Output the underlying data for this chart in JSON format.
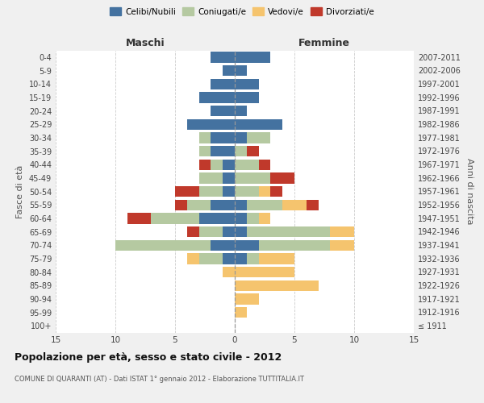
{
  "age_groups": [
    "100+",
    "95-99",
    "90-94",
    "85-89",
    "80-84",
    "75-79",
    "70-74",
    "65-69",
    "60-64",
    "55-59",
    "50-54",
    "45-49",
    "40-44",
    "35-39",
    "30-34",
    "25-29",
    "20-24",
    "15-19",
    "10-14",
    "5-9",
    "0-4"
  ],
  "birth_years": [
    "≤ 1911",
    "1912-1916",
    "1917-1921",
    "1922-1926",
    "1927-1931",
    "1932-1936",
    "1937-1941",
    "1942-1946",
    "1947-1951",
    "1952-1956",
    "1957-1961",
    "1962-1966",
    "1967-1971",
    "1972-1976",
    "1977-1981",
    "1982-1986",
    "1987-1991",
    "1992-1996",
    "1997-2001",
    "2002-2006",
    "2007-2011"
  ],
  "maschi": {
    "celibi": [
      0,
      0,
      0,
      0,
      0,
      1,
      2,
      1,
      3,
      2,
      1,
      1,
      1,
      2,
      2,
      4,
      2,
      3,
      2,
      1,
      2
    ],
    "coniugati": [
      0,
      0,
      0,
      0,
      0,
      2,
      8,
      2,
      4,
      2,
      2,
      2,
      1,
      1,
      1,
      0,
      0,
      0,
      0,
      0,
      0
    ],
    "vedovi": [
      0,
      0,
      0,
      0,
      1,
      1,
      0,
      0,
      0,
      0,
      0,
      0,
      0,
      0,
      0,
      0,
      0,
      0,
      0,
      0,
      0
    ],
    "divorziati": [
      0,
      0,
      0,
      0,
      0,
      0,
      0,
      1,
      2,
      1,
      2,
      0,
      1,
      0,
      0,
      0,
      0,
      0,
      0,
      0,
      0
    ]
  },
  "femmine": {
    "nubili": [
      0,
      0,
      0,
      0,
      0,
      1,
      2,
      1,
      1,
      1,
      0,
      0,
      0,
      0,
      1,
      4,
      1,
      2,
      2,
      1,
      3
    ],
    "coniugate": [
      0,
      0,
      0,
      0,
      0,
      1,
      6,
      7,
      1,
      3,
      2,
      3,
      2,
      1,
      2,
      0,
      0,
      0,
      0,
      0,
      0
    ],
    "vedove": [
      0,
      1,
      2,
      7,
      5,
      3,
      2,
      2,
      1,
      2,
      1,
      0,
      0,
      0,
      0,
      0,
      0,
      0,
      0,
      0,
      0
    ],
    "divorziate": [
      0,
      0,
      0,
      0,
      0,
      0,
      0,
      0,
      0,
      1,
      1,
      2,
      1,
      1,
      0,
      0,
      0,
      0,
      0,
      0,
      0
    ]
  },
  "colors": {
    "celibi": "#4472a0",
    "coniugati": "#b5c9a1",
    "vedovi": "#f5c46e",
    "divorziati": "#c0392b"
  },
  "title": "Popolazione per età, sesso e stato civile - 2012",
  "subtitle": "COMUNE DI QUARANTI (AT) - Dati ISTAT 1° gennaio 2012 - Elaborazione TUTTITALIA.IT",
  "xlabel_left": "Maschi",
  "xlabel_right": "Femmine",
  "ylabel": "Fasce di età",
  "ylabel_right": "Anni di nascita",
  "xlim": 15,
  "bg_color": "#f0f0f0",
  "plot_bg": "#ffffff",
  "grid_color": "#cccccc"
}
